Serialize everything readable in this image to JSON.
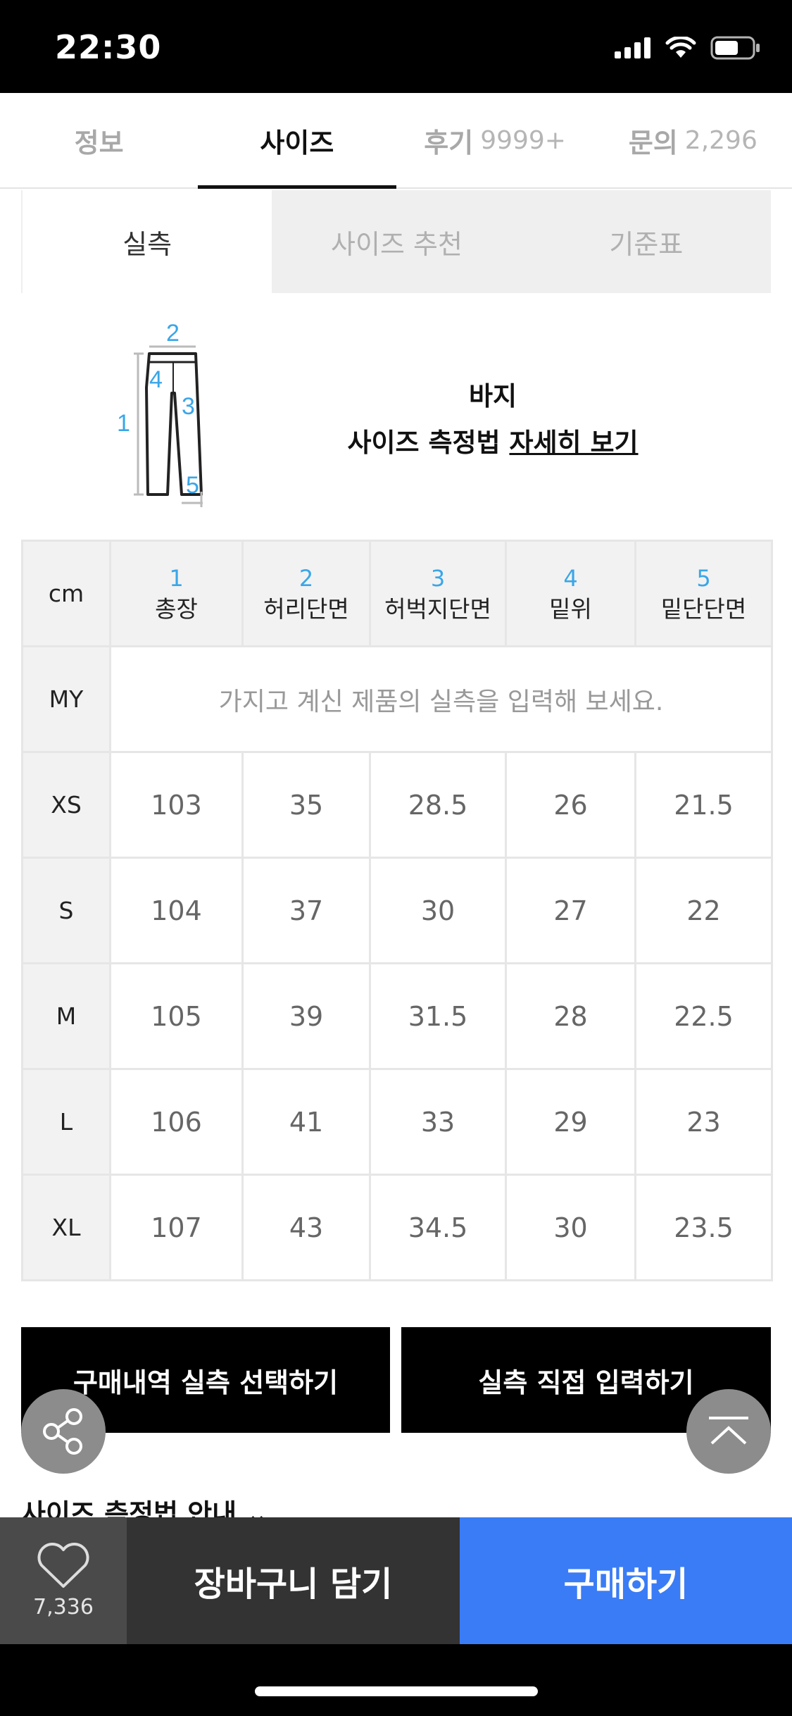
{
  "status_bar": {
    "time": "22:30"
  },
  "top_tabs": [
    {
      "label": "정보",
      "count": ""
    },
    {
      "label": "사이즈",
      "count": ""
    },
    {
      "label": "후기",
      "count": "9999+"
    },
    {
      "label": "문의",
      "count": "2,296"
    }
  ],
  "sub_tabs": [
    "실측",
    "사이즈 추천",
    "기준표"
  ],
  "diagram": {
    "numbers": [
      "1",
      "2",
      "3",
      "4",
      "5"
    ],
    "product_type": "바지",
    "measure_text": "사이즈 측정법",
    "detail_link": "자세히 보기"
  },
  "table": {
    "unit": "cm",
    "columns": [
      {
        "num": "1",
        "label": "총장"
      },
      {
        "num": "2",
        "label": "허리단면"
      },
      {
        "num": "3",
        "label": "허벅지단면"
      },
      {
        "num": "4",
        "label": "밑위"
      },
      {
        "num": "5",
        "label": "밑단단면"
      }
    ],
    "my_row": {
      "label": "MY",
      "placeholder": "가지고 계신 제품의 실측을 입력해 보세요."
    },
    "rows": [
      {
        "size": "XS",
        "values": [
          "103",
          "35",
          "28.5",
          "26",
          "21.5"
        ]
      },
      {
        "size": "S",
        "values": [
          "104",
          "37",
          "30",
          "27",
          "22"
        ]
      },
      {
        "size": "M",
        "values": [
          "105",
          "39",
          "31.5",
          "28",
          "22.5"
        ]
      },
      {
        "size": "L",
        "values": [
          "106",
          "41",
          "33",
          "29",
          "23"
        ]
      },
      {
        "size": "XL",
        "values": [
          "107",
          "43",
          "34.5",
          "30",
          "23.5"
        ]
      }
    ]
  },
  "buttons": {
    "purchase_history": "구매내역 실측 선택하기",
    "direct_input": "실측 직접 입력하기"
  },
  "guide_link": "사이즈 측정법 안내",
  "bottom_bar": {
    "like_count": "7,336",
    "cart_label": "장바구니 담기",
    "buy_label": "구매하기"
  },
  "colors": {
    "accent_blue": "#3a7cf5",
    "number_blue": "#3aa6e8"
  },
  "icons": [
    "signal-icon",
    "wifi-icon",
    "battery-icon",
    "pants-diagram",
    "share-icon",
    "scroll-top-icon",
    "heart-icon",
    "chevron-down-icon"
  ]
}
